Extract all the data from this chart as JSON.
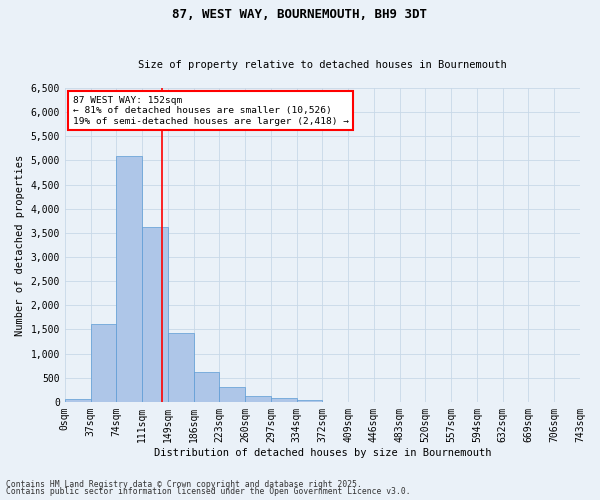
{
  "title": "87, WEST WAY, BOURNEMOUTH, BH9 3DT",
  "subtitle": "Size of property relative to detached houses in Bournemouth",
  "xlabel": "Distribution of detached houses by size in Bournemouth",
  "ylabel": "Number of detached properties",
  "bin_labels": [
    "0sqm",
    "37sqm",
    "74sqm",
    "111sqm",
    "149sqm",
    "186sqm",
    "223sqm",
    "260sqm",
    "297sqm",
    "334sqm",
    "372sqm",
    "409sqm",
    "446sqm",
    "483sqm",
    "520sqm",
    "557sqm",
    "594sqm",
    "632sqm",
    "669sqm",
    "706sqm",
    "743sqm"
  ],
  "bar_values": [
    65,
    1620,
    5100,
    3620,
    1420,
    610,
    300,
    130,
    80,
    40,
    0,
    0,
    0,
    0,
    0,
    0,
    0,
    0,
    0,
    0
  ],
  "bar_color": "#aec6e8",
  "bar_edge_color": "#5b9bd5",
  "property_line_x": 3.78,
  "property_line_color": "red",
  "annotation_title": "87 WEST WAY: 152sqm",
  "annotation_line1": "← 81% of detached houses are smaller (10,526)",
  "annotation_line2": "19% of semi-detached houses are larger (2,418) →",
  "annotation_box_color": "red",
  "ylim": [
    0,
    6500
  ],
  "yticks": [
    0,
    500,
    1000,
    1500,
    2000,
    2500,
    3000,
    3500,
    4000,
    4500,
    5000,
    5500,
    6000,
    6500
  ],
  "grid_color": "#c8d8e8",
  "bg_color": "#eaf1f8",
  "footer1": "Contains HM Land Registry data © Crown copyright and database right 2025.",
  "footer2": "Contains public sector information licensed under the Open Government Licence v3.0."
}
